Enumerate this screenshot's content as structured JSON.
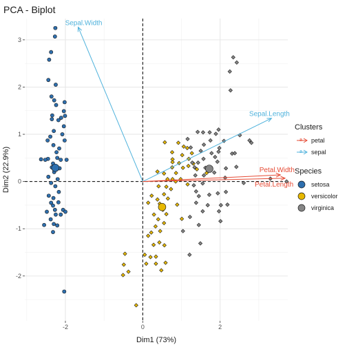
{
  "chart_data": {
    "type": "scatter",
    "title": "PCA - Biplot",
    "xlabel": "Dim1 (73%)",
    "ylabel": "Dim2 (22.9%)",
    "xlim": [
      -3.05,
      3.75
    ],
    "ylim": [
      -2.95,
      3.45
    ],
    "x_ticks": [
      -2,
      0,
      2
    ],
    "y_ticks": [
      -2,
      -1,
      0,
      1,
      2,
      3
    ],
    "grid": true,
    "reference_lines": {
      "x": 0,
      "y": 0,
      "style": "dashed"
    },
    "series": [
      {
        "name": "setosa",
        "color": "#2E6FAE",
        "centroid": [
          -2.26,
          0.29
        ],
        "points": [
          [
            -2.26,
            3.25
          ],
          [
            -2.27,
            3.07
          ],
          [
            -2.37,
            2.74
          ],
          [
            -2.42,
            2.58
          ],
          [
            -2.44,
            2.15
          ],
          [
            -2.25,
            2.05
          ],
          [
            -2.36,
            1.8
          ],
          [
            -2.29,
            1.72
          ],
          [
            -2.02,
            1.68
          ],
          [
            -2.24,
            1.62
          ],
          [
            -2.04,
            1.49
          ],
          [
            -2.34,
            1.4
          ],
          [
            -2.35,
            1.32
          ],
          [
            -2.11,
            1.35
          ],
          [
            -2.01,
            1.39
          ],
          [
            -2.18,
            1.3
          ],
          [
            -2.04,
            1.17
          ],
          [
            -2.3,
            1.07
          ],
          [
            -2.39,
            0.95
          ],
          [
            -2.08,
            1.0
          ],
          [
            -2.46,
            0.87
          ],
          [
            -2.02,
            0.87
          ],
          [
            -2.31,
            0.77
          ],
          [
            -2.23,
            0.62
          ],
          [
            -2.16,
            0.7
          ],
          [
            -2.45,
            0.48
          ],
          [
            -2.12,
            0.46
          ],
          [
            -2.63,
            0.47
          ],
          [
            -2.52,
            0.46
          ],
          [
            -2.21,
            0.5
          ],
          [
            -1.97,
            0.46
          ],
          [
            -2.32,
            0.38
          ],
          [
            -2.35,
            0.3
          ],
          [
            -2.15,
            0.28
          ],
          [
            -2.29,
            0.2
          ],
          [
            -2.44,
            0.1
          ],
          [
            -2.2,
            0.05
          ],
          [
            -2.37,
            -0.03
          ],
          [
            -2.26,
            -0.1
          ],
          [
            -2.17,
            -0.22
          ],
          [
            -2.43,
            -0.3
          ],
          [
            -2.31,
            -0.35
          ],
          [
            -2.37,
            -0.45
          ],
          [
            -2.18,
            -0.44
          ],
          [
            -2.32,
            -0.51
          ],
          [
            -2.27,
            -0.6
          ],
          [
            -2.06,
            -0.6
          ],
          [
            -2.48,
            -0.64
          ],
          [
            -2.0,
            -0.64
          ],
          [
            -2.25,
            -0.7
          ],
          [
            -2.12,
            -0.7
          ],
          [
            -2.38,
            -0.8
          ],
          [
            -2.3,
            -0.9
          ],
          [
            -2.21,
            -0.93
          ],
          [
            -2.55,
            -0.92
          ],
          [
            -2.32,
            -1.07
          ],
          [
            -2.03,
            -2.33
          ]
        ]
      },
      {
        "name": "versicolor",
        "color": "#E7B800",
        "centroid": [
          0.5,
          -0.54
        ],
        "points": [
          [
            0.57,
            0.83
          ],
          [
            0.92,
            0.82
          ],
          [
            1.06,
            0.74
          ],
          [
            1.15,
            0.71
          ],
          [
            0.76,
            0.62
          ],
          [
            1.27,
            0.6
          ],
          [
            0.77,
            0.47
          ],
          [
            1.02,
            0.56
          ],
          [
            1.19,
            0.48
          ],
          [
            0.77,
            0.41
          ],
          [
            0.94,
            0.39
          ],
          [
            0.38,
            0.21
          ],
          [
            0.76,
            0.3
          ],
          [
            1.04,
            0.29
          ],
          [
            1.18,
            0.33
          ],
          [
            1.31,
            0.38
          ],
          [
            0.55,
            0.17
          ],
          [
            0.86,
            0.18
          ],
          [
            0.77,
            0.05
          ],
          [
            0.98,
            0.05
          ],
          [
            1.4,
            0.26
          ],
          [
            1.65,
            0.18
          ],
          [
            0.64,
            0.05
          ],
          [
            0.85,
            0.0
          ],
          [
            0.41,
            -0.1
          ],
          [
            0.61,
            -0.11
          ],
          [
            0.73,
            -0.16
          ],
          [
            0.23,
            -0.3
          ],
          [
            0.55,
            -0.27
          ],
          [
            1.16,
            -0.06
          ],
          [
            0.38,
            -0.38
          ],
          [
            0.65,
            -0.36
          ],
          [
            0.14,
            -0.45
          ],
          [
            0.44,
            -0.47
          ],
          [
            0.89,
            -0.49
          ],
          [
            0.52,
            -0.6
          ],
          [
            0.61,
            -0.69
          ],
          [
            0.29,
            -0.7
          ],
          [
            0.4,
            -0.8
          ],
          [
            1.01,
            -0.79
          ],
          [
            0.55,
            -0.88
          ],
          [
            0.33,
            -0.95
          ],
          [
            0.45,
            -1.05
          ],
          [
            0.22,
            -1.08
          ],
          [
            0.14,
            -1.15
          ],
          [
            0.43,
            -1.29
          ],
          [
            0.28,
            -1.34
          ],
          [
            0.56,
            -1.35
          ],
          [
            0.05,
            -1.55
          ],
          [
            0.34,
            -1.59
          ],
          [
            0.2,
            -1.6
          ],
          [
            -0.46,
            -1.53
          ],
          [
            0.34,
            -1.74
          ],
          [
            0.59,
            -1.72
          ],
          [
            0.09,
            -1.74
          ],
          [
            -0.49,
            -1.76
          ],
          [
            0.48,
            -1.88
          ],
          [
            -0.37,
            -1.91
          ],
          [
            -0.51,
            -1.98
          ],
          [
            -0.17,
            -2.62
          ]
        ]
      },
      {
        "name": "virginica",
        "color": "#868686",
        "centroid": [
          1.72,
          0.27
        ],
        "points": [
          [
            2.34,
            2.63
          ],
          [
            2.43,
            2.52
          ],
          [
            2.25,
            2.33
          ],
          [
            2.27,
            1.93
          ],
          [
            1.96,
            1.1
          ],
          [
            1.73,
            1.04
          ],
          [
            1.56,
            1.04
          ],
          [
            1.42,
            1.05
          ],
          [
            2.51,
            0.98
          ],
          [
            1.89,
            1.01
          ],
          [
            2.1,
            0.86
          ],
          [
            2.76,
            0.87
          ],
          [
            2.81,
            0.82
          ],
          [
            1.75,
            0.87
          ],
          [
            1.16,
            0.9
          ],
          [
            1.24,
            0.72
          ],
          [
            1.58,
            0.78
          ],
          [
            1.98,
            0.71
          ],
          [
            1.96,
            0.63
          ],
          [
            1.5,
            0.65
          ],
          [
            1.78,
            0.6
          ],
          [
            2.31,
            0.59
          ],
          [
            2.38,
            0.6
          ],
          [
            1.28,
            0.4
          ],
          [
            1.43,
            0.4
          ],
          [
            1.57,
            0.48
          ],
          [
            1.87,
            0.52
          ],
          [
            1.93,
            0.42
          ],
          [
            1.34,
            0.3
          ],
          [
            1.62,
            0.29
          ],
          [
            2.15,
            0.28
          ],
          [
            2.42,
            0.31
          ],
          [
            1.36,
            0.13
          ],
          [
            1.58,
            0.13
          ],
          [
            1.85,
            0.19
          ],
          [
            2.13,
            0.08
          ],
          [
            1.32,
            -0.08
          ],
          [
            1.55,
            -0.04
          ],
          [
            1.38,
            -0.21
          ],
          [
            2.61,
            -0.03
          ],
          [
            3.3,
            0.06
          ],
          [
            3.72,
            0.0
          ],
          [
            1.45,
            -0.31
          ],
          [
            1.72,
            -0.28
          ],
          [
            1.94,
            -0.25
          ],
          [
            2.15,
            -0.22
          ],
          [
            1.38,
            -0.45
          ],
          [
            1.68,
            -0.5
          ],
          [
            1.55,
            -0.63
          ],
          [
            2.02,
            -0.5
          ],
          [
            1.97,
            -0.63
          ],
          [
            2.19,
            -0.49
          ],
          [
            1.22,
            -0.75
          ],
          [
            1.45,
            -0.92
          ],
          [
            1.49,
            -1.31
          ],
          [
            1.21,
            -1.55
          ],
          [
            2.01,
            -0.84
          ],
          [
            1.04,
            -1.05
          ]
        ]
      }
    ],
    "arrows": [
      {
        "name": "Sepal.Width",
        "group": "sepal",
        "end": [
          -1.67,
          3.27
        ],
        "color": "#4FB2DC"
      },
      {
        "name": "Sepal.Length",
        "group": "sepal",
        "end": [
          3.33,
          1.34
        ],
        "color": "#4FB2DC"
      },
      {
        "name": "Petal.Width",
        "group": "petal",
        "end": [
          3.56,
          0.14
        ],
        "color": "#E64B35"
      },
      {
        "name": "Petal.Length",
        "group": "petal",
        "end": [
          3.68,
          0.07
        ],
        "color": "#E64B35"
      }
    ],
    "legends": [
      {
        "title": "Clusters",
        "items": [
          {
            "label": "petal",
            "color": "#E64B35"
          },
          {
            "label": "sepal",
            "color": "#4FB2DC"
          }
        ]
      },
      {
        "title": "Species",
        "items": [
          {
            "label": "setosa",
            "color": "#2E6FAE"
          },
          {
            "label": "versicolor",
            "color": "#E7B800"
          },
          {
            "label": "virginica",
            "color": "#868686"
          }
        ]
      }
    ],
    "legend_position": "right"
  }
}
